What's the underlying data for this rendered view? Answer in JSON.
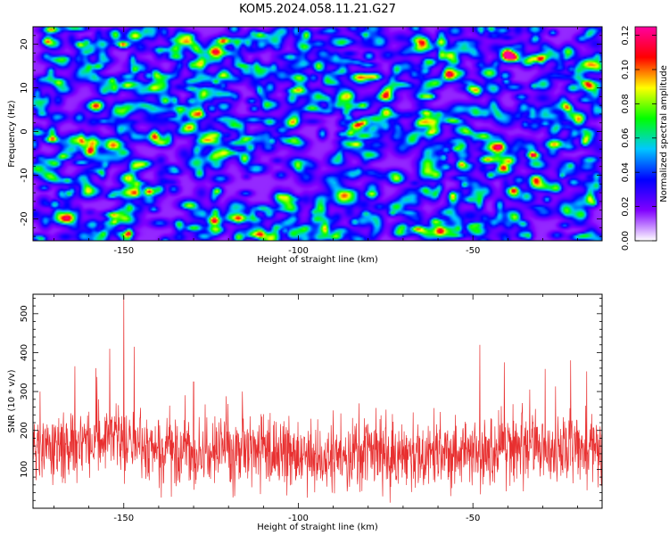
{
  "title": "KOM5.2024.058.11.21.G27",
  "chart_data": [
    {
      "type": "heatmap",
      "xlabel": "Height of straight line (km)",
      "ylabel": "Frequency (Hz)",
      "xlim": [
        -176,
        -13
      ],
      "ylim": [
        -25,
        24
      ],
      "x_ticks": [
        -150,
        -100,
        -50
      ],
      "y_ticks": [
        -20,
        -10,
        0,
        10,
        20
      ],
      "colorbar": {
        "label": "Normalized spectral amplitude",
        "range": [
          0.0,
          0.125
        ],
        "ticks": [
          "0.00",
          "0.02",
          "0.04",
          "0.06",
          "0.08",
          "0.10",
          "0.12"
        ],
        "colors": [
          "#ffffff",
          "#8000ff",
          "#0000ff",
          "#00c8ff",
          "#00ff00",
          "#ffff00",
          "#ff0000",
          "#ff00a0"
        ]
      },
      "hotspots": [
        {
          "x": -161,
          "y": 20.5,
          "v": 0.125
        },
        {
          "x": -113,
          "y": 22.5,
          "v": 0.11
        },
        {
          "x": -143,
          "y": 13,
          "v": 0.09
        },
        {
          "x": -125,
          "y": 5.5,
          "v": 0.08
        },
        {
          "x": -96,
          "y": 12.5,
          "v": 0.07
        },
        {
          "x": -80,
          "y": 17.5,
          "v": 0.09
        },
        {
          "x": -63,
          "y": 10.5,
          "v": 0.08
        },
        {
          "x": -41,
          "y": 13,
          "v": 0.09
        },
        {
          "x": -22,
          "y": 14.5,
          "v": 0.07
        },
        {
          "x": -108,
          "y": -2,
          "v": 0.1
        },
        {
          "x": -90,
          "y": -11.5,
          "v": 0.09
        },
        {
          "x": -40,
          "y": -6.5,
          "v": 0.125
        },
        {
          "x": -166,
          "y": -14,
          "v": 0.12
        },
        {
          "x": -170,
          "y": -16.5,
          "v": 0.1
        },
        {
          "x": -84,
          "y": -20.5,
          "v": 0.1
        },
        {
          "x": -104,
          "y": -22.5,
          "v": 0.08
        },
        {
          "x": -58,
          "y": -4,
          "v": 0.08
        },
        {
          "x": -136,
          "y": -13,
          "v": 0.07
        }
      ]
    },
    {
      "type": "line",
      "xlabel": "Height of straight line (km)",
      "ylabel": "SNR (10 * v/v)",
      "xlim": [
        -176,
        -13
      ],
      "ylim": [
        0,
        550
      ],
      "x_ticks": [
        -150,
        -100,
        -50
      ],
      "y_ticks": [
        100,
        200,
        300,
        400,
        500
      ],
      "color": "#e83030",
      "peaks": [
        {
          "x": -150,
          "y": 545
        },
        {
          "x": -154,
          "y": 410
        },
        {
          "x": -147,
          "y": 415
        },
        {
          "x": -158,
          "y": 360
        },
        {
          "x": -164,
          "y": 365
        },
        {
          "x": -48,
          "y": 420
        },
        {
          "x": -41,
          "y": 375
        },
        {
          "x": -22,
          "y": 380
        },
        {
          "x": -130,
          "y": 325
        },
        {
          "x": -116,
          "y": 300
        },
        {
          "x": -174,
          "y": 300
        }
      ],
      "baseline": [
        {
          "x": -176,
          "y": 150
        },
        {
          "x": -155,
          "y": 175
        },
        {
          "x": -140,
          "y": 150
        },
        {
          "x": -100,
          "y": 130
        },
        {
          "x": -70,
          "y": 135
        },
        {
          "x": -40,
          "y": 150
        },
        {
          "x": -13,
          "y": 160
        }
      ]
    }
  ]
}
